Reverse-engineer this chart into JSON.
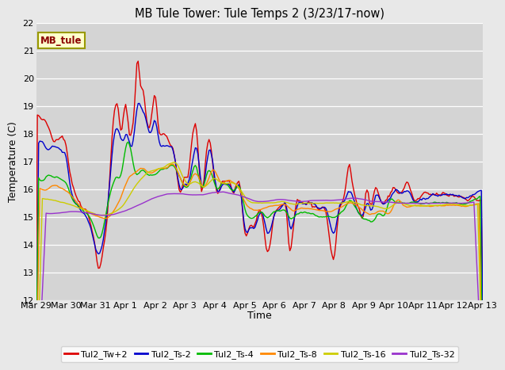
{
  "title": "MB Tule Tower: Tule Temps 2 (3/23/17-now)",
  "xlabel": "Time",
  "ylabel": "Temperature (C)",
  "ylim": [
    12.0,
    22.0
  ],
  "yticks": [
    12.0,
    13.0,
    14.0,
    15.0,
    16.0,
    17.0,
    18.0,
    19.0,
    20.0,
    21.0,
    22.0
  ],
  "background_color": "#e8e8e8",
  "plot_bg_color": "#d4d4d4",
  "grid_color": "#ffffff",
  "legend_label": "MB_tule",
  "legend_bg": "#ffffcc",
  "legend_border": "#999900",
  "series": [
    {
      "label": "Tul2_Tw+2",
      "color": "#dd0000"
    },
    {
      "label": "Tul2_Ts-2",
      "color": "#0000cc"
    },
    {
      "label": "Tul2_Ts-4",
      "color": "#00bb00"
    },
    {
      "label": "Tul2_Ts-8",
      "color": "#ff8800"
    },
    {
      "label": "Tul2_Ts-16",
      "color": "#cccc00"
    },
    {
      "label": "Tul2_Ts-32",
      "color": "#9933cc"
    }
  ],
  "xtick_labels": [
    "Mar 29",
    "Mar 30",
    "Mar 31",
    "Apr 1",
    "Apr 2",
    "Apr 3",
    "Apr 4",
    "Apr 5",
    "Apr 6",
    "Apr 7",
    "Apr 8",
    "Apr 9",
    "Apr 10",
    "Apr 11",
    "Apr 12",
    "Apr 13"
  ]
}
